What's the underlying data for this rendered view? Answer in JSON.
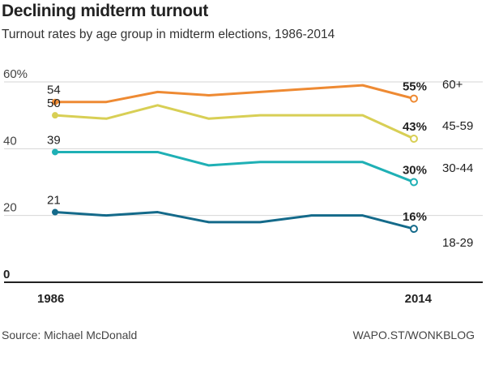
{
  "header": {
    "title": "Declining midterm turnout",
    "subtitle": "Turnout rates by age group in midterm elections, 1986-2014"
  },
  "footer": {
    "source": "Source: Michael McDonald",
    "credit": "WAPO.ST/WONKBLOG"
  },
  "chart_data": {
    "type": "line",
    "title": "Declining midterm turnout",
    "subtitle": "Turnout rates by age group in midterm elections, 1986-2014",
    "x": [
      1986,
      1990,
      1994,
      1998,
      2002,
      2006,
      2010,
      2014
    ],
    "x_tick_labels": [
      "1986",
      "2014"
    ],
    "y_ticks": [
      0,
      20,
      40,
      60
    ],
    "y_tick_labels": [
      "0",
      "20",
      "40",
      "60%"
    ],
    "ylim": [
      0,
      60
    ],
    "grid": true,
    "legend": "labels at right end of lines",
    "series": [
      {
        "name": "60+",
        "color": "#ee8a33",
        "values": [
          54,
          54,
          57,
          56,
          57,
          58,
          59,
          55
        ],
        "start_label": "54",
        "end_label": "55%"
      },
      {
        "name": "45-59",
        "color": "#d8cf55",
        "values": [
          50,
          49,
          53,
          49,
          50,
          50,
          50,
          43
        ],
        "start_label": "50",
        "end_label": "43%"
      },
      {
        "name": "30-44",
        "color": "#1fb0b5",
        "values": [
          39,
          39,
          39,
          35,
          36,
          36,
          36,
          30
        ],
        "start_label": "39",
        "end_label": "30%"
      },
      {
        "name": "18-29",
        "color": "#146a8a",
        "values": [
          21,
          20,
          21,
          18,
          18,
          20,
          20,
          16
        ],
        "start_label": "21",
        "end_label": "16%"
      }
    ]
  }
}
